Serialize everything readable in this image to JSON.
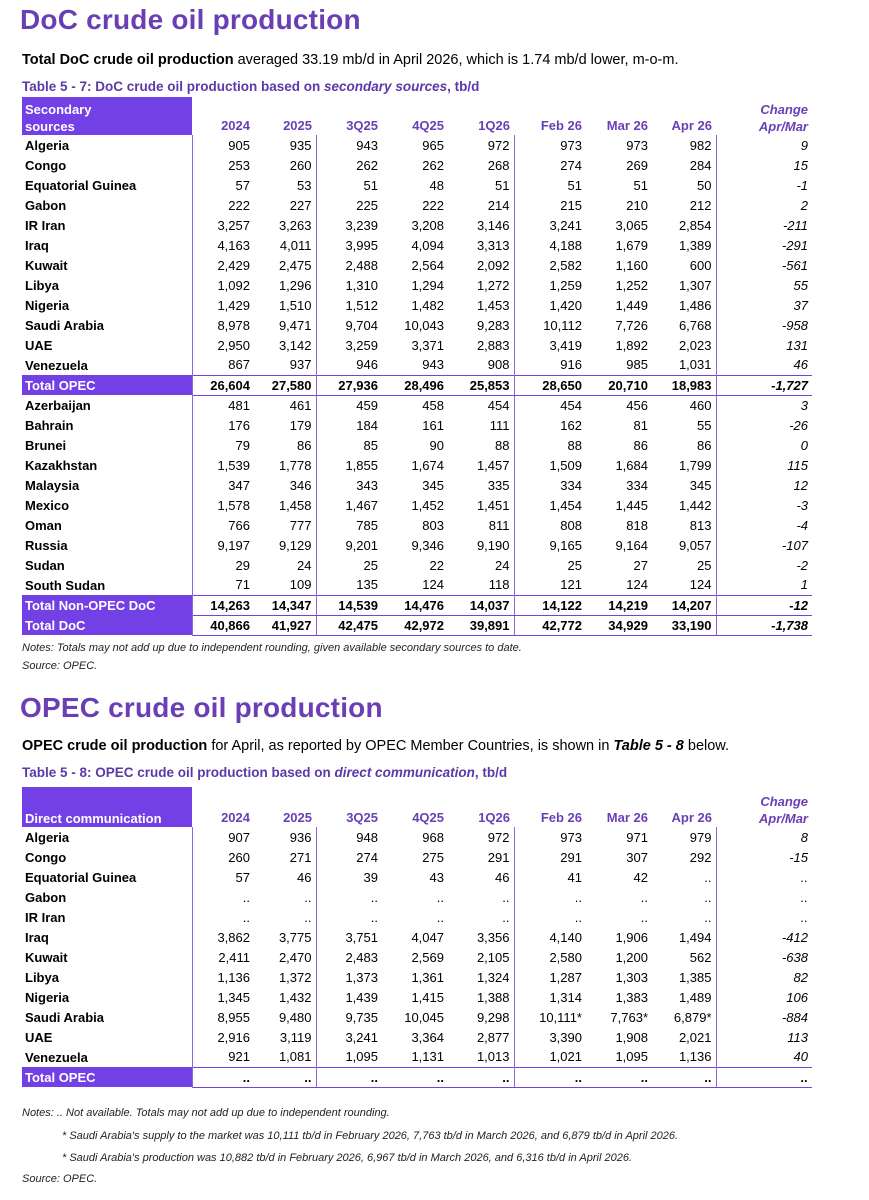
{
  "section1": {
    "heading": "DoC crude oil production",
    "lead_bold": "Total DoC crude oil production",
    "lead_rest": " averaged 33.19 mb/d in April 2026, which is 1.74 mb/d lower, m-o-m.",
    "caption_pre": "Table 5 - 7: DoC crude oil production based on ",
    "caption_it": "secondary sources",
    "caption_post": ", tb/d",
    "header_label_line1": "Secondary",
    "header_label_line2": "sources",
    "columns": [
      "2024",
      "2025",
      "3Q25",
      "4Q25",
      "1Q26",
      "Feb 26",
      "Mar 26",
      "Apr 26"
    ],
    "change_line1": "Change",
    "change_line2": "Apr/Mar",
    "rows": [
      {
        "label": "Algeria",
        "values": [
          "905",
          "935",
          "943",
          "965",
          "972",
          "973",
          "973",
          "982"
        ],
        "change": "9",
        "total": false
      },
      {
        "label": "Congo",
        "values": [
          "253",
          "260",
          "262",
          "262",
          "268",
          "274",
          "269",
          "284"
        ],
        "change": "15",
        "total": false
      },
      {
        "label": "Equatorial Guinea",
        "values": [
          "57",
          "53",
          "51",
          "48",
          "51",
          "51",
          "51",
          "50"
        ],
        "change": "-1",
        "total": false
      },
      {
        "label": "Gabon",
        "values": [
          "222",
          "227",
          "225",
          "222",
          "214",
          "215",
          "210",
          "212"
        ],
        "change": "2",
        "total": false
      },
      {
        "label": "IR Iran",
        "values": [
          "3,257",
          "3,263",
          "3,239",
          "3,208",
          "3,146",
          "3,241",
          "3,065",
          "2,854"
        ],
        "change": "-211",
        "total": false
      },
      {
        "label": "Iraq",
        "values": [
          "4,163",
          "4,011",
          "3,995",
          "4,094",
          "3,313",
          "4,188",
          "1,679",
          "1,389"
        ],
        "change": "-291",
        "total": false
      },
      {
        "label": "Kuwait",
        "values": [
          "2,429",
          "2,475",
          "2,488",
          "2,564",
          "2,092",
          "2,582",
          "1,160",
          "600"
        ],
        "change": "-561",
        "total": false
      },
      {
        "label": "Libya",
        "values": [
          "1,092",
          "1,296",
          "1,310",
          "1,294",
          "1,272",
          "1,259",
          "1,252",
          "1,307"
        ],
        "change": "55",
        "total": false
      },
      {
        "label": "Nigeria",
        "values": [
          "1,429",
          "1,510",
          "1,512",
          "1,482",
          "1,453",
          "1,420",
          "1,449",
          "1,486"
        ],
        "change": "37",
        "total": false
      },
      {
        "label": "Saudi Arabia",
        "values": [
          "8,978",
          "9,471",
          "9,704",
          "10,043",
          "9,283",
          "10,112",
          "7,726",
          "6,768"
        ],
        "change": "-958",
        "total": false
      },
      {
        "label": "UAE",
        "values": [
          "2,950",
          "3,142",
          "3,259",
          "3,371",
          "2,883",
          "3,419",
          "1,892",
          "2,023"
        ],
        "change": "131",
        "total": false
      },
      {
        "label": "Venezuela",
        "values": [
          "867",
          "937",
          "946",
          "943",
          "908",
          "916",
          "985",
          "1,031"
        ],
        "change": "46",
        "total": false
      },
      {
        "label": "Total  OPEC",
        "values": [
          "26,604",
          "27,580",
          "27,936",
          "28,496",
          "25,853",
          "28,650",
          "20,710",
          "18,983"
        ],
        "change": "-1,727",
        "total": true
      },
      {
        "label": "Azerbaijan",
        "values": [
          "481",
          "461",
          "459",
          "458",
          "454",
          "454",
          "456",
          "460"
        ],
        "change": "3",
        "total": false
      },
      {
        "label": "Bahrain",
        "values": [
          "176",
          "179",
          "184",
          "161",
          "111",
          "162",
          "81",
          "55"
        ],
        "change": "-26",
        "total": false
      },
      {
        "label": "Brunei",
        "values": [
          "79",
          "86",
          "85",
          "90",
          "88",
          "88",
          "86",
          "86"
        ],
        "change": "0",
        "total": false
      },
      {
        "label": "Kazakhstan",
        "values": [
          "1,539",
          "1,778",
          "1,855",
          "1,674",
          "1,457",
          "1,509",
          "1,684",
          "1,799"
        ],
        "change": "115",
        "total": false
      },
      {
        "label": "Malaysia",
        "values": [
          "347",
          "346",
          "343",
          "345",
          "335",
          "334",
          "334",
          "345"
        ],
        "change": "12",
        "total": false
      },
      {
        "label": "Mexico",
        "values": [
          "1,578",
          "1,458",
          "1,467",
          "1,452",
          "1,451",
          "1,454",
          "1,445",
          "1,442"
        ],
        "change": "-3",
        "total": false
      },
      {
        "label": "Oman",
        "values": [
          "766",
          "777",
          "785",
          "803",
          "811",
          "808",
          "818",
          "813"
        ],
        "change": "-4",
        "total": false
      },
      {
        "label": "Russia",
        "values": [
          "9,197",
          "9,129",
          "9,201",
          "9,346",
          "9,190",
          "9,165",
          "9,164",
          "9,057"
        ],
        "change": "-107",
        "total": false
      },
      {
        "label": "Sudan",
        "values": [
          "29",
          "24",
          "25",
          "22",
          "24",
          "25",
          "27",
          "25"
        ],
        "change": "-2",
        "total": false
      },
      {
        "label": "South Sudan",
        "values": [
          "71",
          "109",
          "135",
          "124",
          "118",
          "121",
          "124",
          "124"
        ],
        "change": "1",
        "total": false
      },
      {
        "label": "Total Non-OPEC DoC",
        "values": [
          "14,263",
          "14,347",
          "14,539",
          "14,476",
          "14,037",
          "14,122",
          "14,219",
          "14,207"
        ],
        "change": "-12",
        "total": true
      },
      {
        "label": "Total DoC",
        "values": [
          "40,866",
          "41,927",
          "42,475",
          "42,972",
          "39,891",
          "42,772",
          "34,929",
          "33,190"
        ],
        "change": "-1,738",
        "total": true
      }
    ],
    "notes": "Notes: Totals may not add up due to independent rounding, given available secondary sources to date.",
    "source": "Source: OPEC."
  },
  "section2": {
    "heading": "OPEC crude oil production",
    "lead_bold": "OPEC crude oil production",
    "lead_mid": " for April, as reported by OPEC Member Countries, is shown in ",
    "lead_ref": "Table 5 - 8",
    "lead_end": " below.",
    "caption_pre": "Table 5 - 8: OPEC crude oil production based on ",
    "caption_it": "direct communication",
    "caption_post": ", tb/d",
    "header_label": "Direct communication",
    "columns": [
      "2024",
      "2025",
      "3Q25",
      "4Q25",
      "1Q26",
      "Feb 26",
      "Mar 26",
      "Apr 26"
    ],
    "change_line1": "Change",
    "change_line2": "Apr/Mar",
    "rows": [
      {
        "label": "Algeria",
        "values": [
          "907",
          "936",
          "948",
          "968",
          "972",
          "973",
          "971",
          "979"
        ],
        "change": "8",
        "total": false
      },
      {
        "label": "Congo",
        "values": [
          "260",
          "271",
          "274",
          "275",
          "291",
          "291",
          "307",
          "292"
        ],
        "change": "-15",
        "total": false
      },
      {
        "label": "Equatorial Guinea",
        "values": [
          "57",
          "46",
          "39",
          "43",
          "46",
          "41",
          "42",
          ".."
        ],
        "change": "..",
        "total": false
      },
      {
        "label": "Gabon",
        "values": [
          "..",
          "..",
          "..",
          "..",
          "..",
          "..",
          "..",
          ".."
        ],
        "change": "..",
        "total": false
      },
      {
        "label": "IR Iran",
        "values": [
          "..",
          "..",
          "..",
          "..",
          "..",
          "..",
          "..",
          ".."
        ],
        "change": "..",
        "total": false
      },
      {
        "label": "Iraq",
        "values": [
          "3,862",
          "3,775",
          "3,751",
          "4,047",
          "3,356",
          "4,140",
          "1,906",
          "1,494"
        ],
        "change": "-412",
        "total": false
      },
      {
        "label": "Kuwait",
        "values": [
          "2,411",
          "2,470",
          "2,483",
          "2,569",
          "2,105",
          "2,580",
          "1,200",
          "562"
        ],
        "change": "-638",
        "total": false
      },
      {
        "label": "Libya",
        "values": [
          "1,136",
          "1,372",
          "1,373",
          "1,361",
          "1,324",
          "1,287",
          "1,303",
          "1,385"
        ],
        "change": "82",
        "total": false
      },
      {
        "label": "Nigeria",
        "values": [
          "1,345",
          "1,432",
          "1,439",
          "1,415",
          "1,388",
          "1,314",
          "1,383",
          "1,489"
        ],
        "change": "106",
        "total": false
      },
      {
        "label": "Saudi Arabia",
        "values": [
          "8,955",
          "9,480",
          "9,735",
          "10,045",
          "9,298",
          "10,111*",
          "7,763*",
          "6,879*"
        ],
        "change": "-884",
        "total": false
      },
      {
        "label": "UAE",
        "values": [
          "2,916",
          "3,119",
          "3,241",
          "3,364",
          "2,877",
          "3,390",
          "1,908",
          "2,021"
        ],
        "change": "113",
        "total": false
      },
      {
        "label": "Venezuela",
        "values": [
          "921",
          "1,081",
          "1,095",
          "1,131",
          "1,013",
          "1,021",
          "1,095",
          "1,136"
        ],
        "change": "40",
        "total": false
      },
      {
        "label": "Total  OPEC",
        "values": [
          "..",
          "..",
          "..",
          "..",
          "..",
          "..",
          "..",
          ".."
        ],
        "change": "..",
        "total": true
      }
    ],
    "notes": "Notes:  ..  Not available. Totals may not add up due to independent rounding.",
    "footnote1": "* Saudi Arabia's supply to the market was 10,111 tb/d in February 2026, 7,763 tb/d in March 2026, and 6,879 tb/d in April 2026.",
    "footnote2": "* Saudi Arabia's production was 10,882 tb/d in February 2026, 6,967 tb/d in March 2026, and 6,316 tb/d in April 2026.",
    "source": "Source: OPEC."
  },
  "colors": {
    "accent": "#7340e6",
    "heading": "#6a3fb5"
  }
}
